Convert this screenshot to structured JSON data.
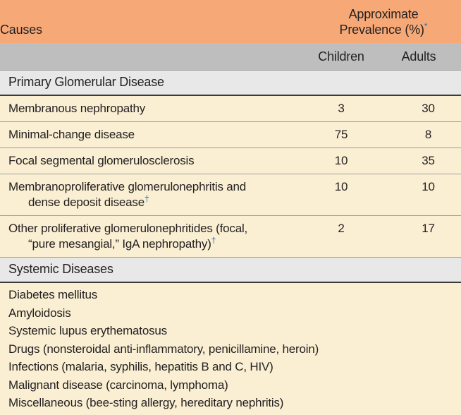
{
  "palette": {
    "header_bg": "#F6A877",
    "subheader_bg": "#BEBEBE",
    "section_bg": "#E8E8E8",
    "row_bg": "#FAEFD3",
    "text": "#231F20",
    "footnote_mark": "#1C75BC",
    "separator_line": "#9E9E9E",
    "section_rule": "#3A3A3A"
  },
  "chart_data": {
    "type": "table",
    "columns": [
      "Causes",
      "Children",
      "Adults"
    ],
    "header": {
      "causes_label": "Causes",
      "prevalence_line1": "Approximate",
      "prevalence_line2": "Prevalence (%)",
      "prevalence_footnote_mark": "*",
      "children_label": "Children",
      "adults_label": "Adults"
    },
    "sections": [
      {
        "title": "Primary Glomerular Disease",
        "rows": [
          {
            "cause": "Membranous nephropathy",
            "children": 3,
            "adults": 30
          },
          {
            "cause": "Minimal-change disease",
            "children": 75,
            "adults": 8
          },
          {
            "cause": "Focal segmental glomerulosclerosis",
            "children": 10,
            "adults": 35
          },
          {
            "cause_line1": "Membranoproliferative glomerulonephritis and",
            "cause_line2": "dense deposit disease",
            "footnote_mark": "†",
            "children": 10,
            "adults": 10
          },
          {
            "cause_line1": "Other proliferative glomerulonephritides (focal,",
            "cause_line2": "“pure mesangial,” IgA nephropathy)",
            "footnote_mark": "†",
            "children": 2,
            "adults": 17
          }
        ]
      },
      {
        "title": "Systemic Diseases",
        "rows": [
          {
            "cause": "Diabetes mellitus"
          },
          {
            "cause": "Amyloidosis"
          },
          {
            "cause": "Systemic lupus erythematosus"
          },
          {
            "cause": "Drugs (nonsteroidal anti-inflammatory, penicillamine, heroin)"
          },
          {
            "cause": "Infections (malaria, syphilis, hepatitis B and C, HIV)"
          },
          {
            "cause": "Malignant disease (carcinoma, lymphoma)"
          },
          {
            "cause": "Miscellaneous (bee-sting allergy, hereditary nephritis)"
          }
        ]
      }
    ]
  }
}
